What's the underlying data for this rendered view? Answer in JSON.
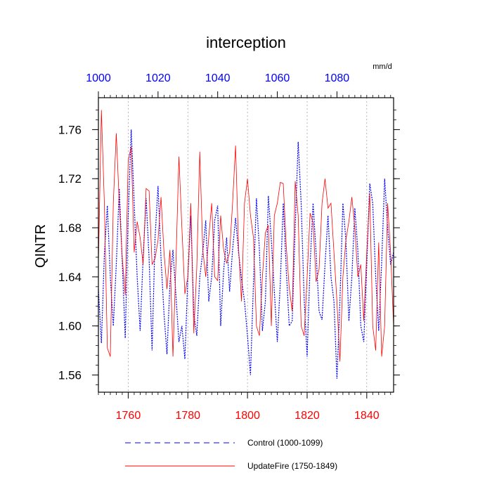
{
  "chart_data": {
    "type": "line",
    "title": "interception",
    "units_label": "mm/d",
    "ylabel": "QINTR",
    "ylim": [
      1.546,
      1.786
    ],
    "yticks": [
      1.56,
      1.6,
      1.64,
      1.68,
      1.72,
      1.76
    ],
    "ytick_labels": [
      "1.56",
      "1.60",
      "1.64",
      "1.68",
      "1.72",
      "1.76"
    ],
    "top_axis": {
      "range": [
        1000,
        1099
      ],
      "ticks": [
        1000,
        1020,
        1040,
        1060,
        1080
      ],
      "tick_labels": [
        "1000",
        "1020",
        "1040",
        "1060",
        "1080"
      ],
      "color": "#0000ff"
    },
    "bottom_axis": {
      "range": [
        1750,
        1849
      ],
      "ticks": [
        1760,
        1780,
        1800,
        1820,
        1840
      ],
      "tick_labels": [
        "1760",
        "1780",
        "1800",
        "1820",
        "1840"
      ],
      "color": "#ff0000"
    },
    "grid_x": [
      1760,
      1780,
      1800,
      1820,
      1840
    ],
    "legend_position": "bottom",
    "series": [
      {
        "name": "Control (1000-1099)",
        "axis": "top",
        "color": "#0000ff",
        "style": "dashed",
        "x": [
          1000,
          1001,
          1002,
          1003,
          1004,
          1005,
          1006,
          1007,
          1008,
          1009,
          1010,
          1011,
          1012,
          1013,
          1014,
          1015,
          1016,
          1017,
          1018,
          1019,
          1020,
          1021,
          1022,
          1023,
          1024,
          1025,
          1026,
          1027,
          1028,
          1029,
          1030,
          1031,
          1032,
          1033,
          1034,
          1035,
          1036,
          1037,
          1038,
          1039,
          1040,
          1041,
          1042,
          1043,
          1044,
          1045,
          1046,
          1047,
          1048,
          1049,
          1050,
          1051,
          1052,
          1053,
          1054,
          1055,
          1056,
          1057,
          1058,
          1059,
          1060,
          1061,
          1062,
          1063,
          1064,
          1065,
          1066,
          1067,
          1068,
          1069,
          1070,
          1071,
          1072,
          1073,
          1074,
          1075,
          1076,
          1077,
          1078,
          1079,
          1080,
          1081,
          1082,
          1083,
          1084,
          1085,
          1086,
          1087,
          1088,
          1089,
          1090,
          1091,
          1092,
          1093,
          1094,
          1095,
          1096,
          1097,
          1098,
          1099
        ],
        "values": [
          1.63,
          1.586,
          1.658,
          1.698,
          1.64,
          1.6,
          1.65,
          1.712,
          1.652,
          1.59,
          1.69,
          1.76,
          1.7,
          1.64,
          1.596,
          1.656,
          1.704,
          1.655,
          1.58,
          1.672,
          1.714,
          1.655,
          1.61,
          1.577,
          1.635,
          1.662,
          1.625,
          1.587,
          1.6,
          1.573,
          1.64,
          1.69,
          1.61,
          1.592,
          1.64,
          1.66,
          1.686,
          1.62,
          1.64,
          1.686,
          1.698,
          1.6,
          1.645,
          1.672,
          1.628,
          1.662,
          1.688,
          1.66,
          1.638,
          1.62,
          1.592,
          1.56,
          1.635,
          1.704,
          1.662,
          1.596,
          1.62,
          1.706,
          1.67,
          1.628,
          1.587,
          1.635,
          1.7,
          1.646,
          1.6,
          1.604,
          1.68,
          1.75,
          1.7,
          1.622,
          1.575,
          1.65,
          1.7,
          1.66,
          1.612,
          1.605,
          1.65,
          1.69,
          1.64,
          1.62,
          1.557,
          1.62,
          1.7,
          1.67,
          1.604,
          1.64,
          1.696,
          1.662,
          1.6,
          1.587,
          1.65,
          1.716,
          1.7,
          1.64,
          1.596,
          1.652,
          1.72,
          1.68,
          1.65,
          1.66
        ]
      },
      {
        "name": "UpdateFire (1750-1849)",
        "axis": "bottom",
        "color": "#ff0000",
        "style": "solid",
        "x": [
          1750,
          1751,
          1752,
          1753,
          1754,
          1755,
          1756,
          1757,
          1758,
          1759,
          1760,
          1761,
          1762,
          1763,
          1764,
          1765,
          1766,
          1767,
          1768,
          1769,
          1770,
          1771,
          1772,
          1773,
          1774,
          1775,
          1776,
          1777,
          1778,
          1779,
          1780,
          1781,
          1782,
          1783,
          1784,
          1785,
          1786,
          1787,
          1788,
          1789,
          1790,
          1791,
          1792,
          1793,
          1794,
          1795,
          1796,
          1797,
          1798,
          1799,
          1800,
          1801,
          1802,
          1803,
          1804,
          1805,
          1806,
          1807,
          1808,
          1809,
          1810,
          1811,
          1812,
          1813,
          1814,
          1815,
          1816,
          1817,
          1818,
          1819,
          1820,
          1821,
          1822,
          1823,
          1824,
          1825,
          1826,
          1827,
          1828,
          1829,
          1830,
          1831,
          1832,
          1833,
          1834,
          1835,
          1836,
          1837,
          1838,
          1839,
          1840,
          1841,
          1842,
          1843,
          1844,
          1845,
          1846,
          1847,
          1848,
          1849
        ],
        "values": [
          1.65,
          1.776,
          1.7,
          1.582,
          1.575,
          1.7,
          1.757,
          1.7,
          1.656,
          1.625,
          1.735,
          1.746,
          1.66,
          1.685,
          1.672,
          1.65,
          1.712,
          1.71,
          1.65,
          1.655,
          1.67,
          1.705,
          1.66,
          1.63,
          1.662,
          1.575,
          1.651,
          1.738,
          1.68,
          1.626,
          1.64,
          1.7,
          1.594,
          1.648,
          1.742,
          1.662,
          1.64,
          1.672,
          1.7,
          1.64,
          1.637,
          1.69,
          1.662,
          1.651,
          1.66,
          1.7,
          1.747,
          1.664,
          1.62,
          1.7,
          1.72,
          1.69,
          1.672,
          1.6,
          1.592,
          1.64,
          1.676,
          1.682,
          1.6,
          1.69,
          1.7,
          1.717,
          1.716,
          1.665,
          1.631,
          1.612,
          1.718,
          1.69,
          1.6,
          1.592,
          1.64,
          1.692,
          1.684,
          1.636,
          1.646,
          1.7,
          1.72,
          1.696,
          1.7,
          1.66,
          1.62,
          1.571,
          1.64,
          1.67,
          1.685,
          1.705,
          1.68,
          1.64,
          1.65,
          1.604,
          1.66,
          1.708,
          1.6,
          1.58,
          1.668,
          1.575,
          1.6,
          1.7,
          1.66,
          1.6
        ]
      }
    ]
  }
}
